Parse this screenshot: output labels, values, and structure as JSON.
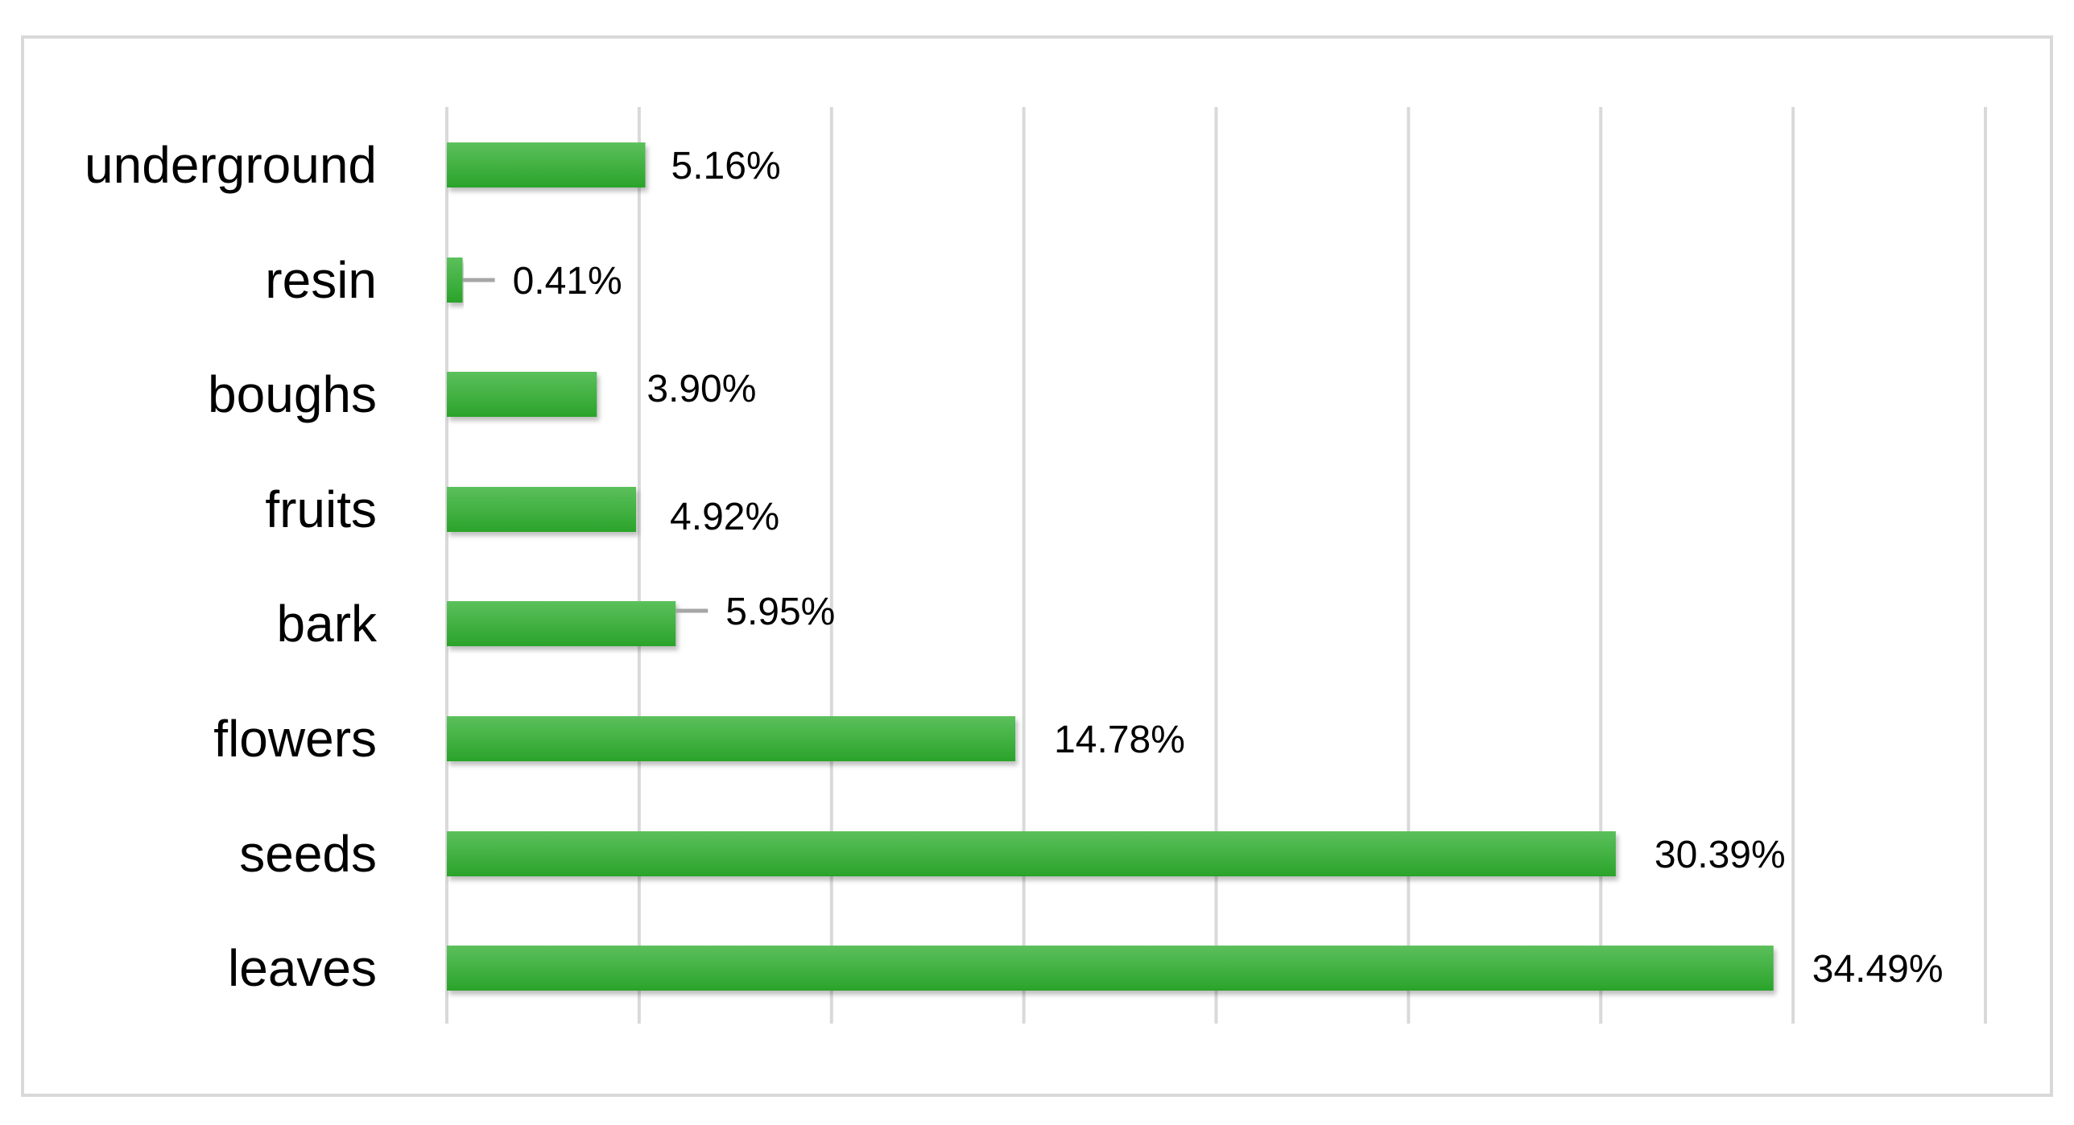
{
  "chart_data": {
    "type": "bar",
    "orientation": "horizontal",
    "categories": [
      "underground",
      "resin",
      "boughs",
      "fruits",
      "bark",
      "flowers",
      "seeds",
      "leaves"
    ],
    "values": [
      5.16,
      0.41,
      3.9,
      4.92,
      5.95,
      14.78,
      30.39,
      34.49
    ],
    "value_labels": [
      "5.16%",
      "0.41%",
      "3.90%",
      "4.92%",
      "5.95%",
      "14.78%",
      "30.39%",
      "34.49%"
    ],
    "title": "",
    "xlabel": "",
    "ylabel": "",
    "xlim": [
      0,
      40
    ],
    "x_tick_labels_shown": false,
    "grid": true,
    "legend": "none",
    "colors": {
      "bar": "#3cb43c",
      "bar_light": "#5cc05c",
      "bar_dark": "#2aa32a",
      "gridline": "#d9d9d9",
      "border": "#d9d9d9",
      "leader_line": "#a6a6a6",
      "text": "#000000"
    }
  }
}
